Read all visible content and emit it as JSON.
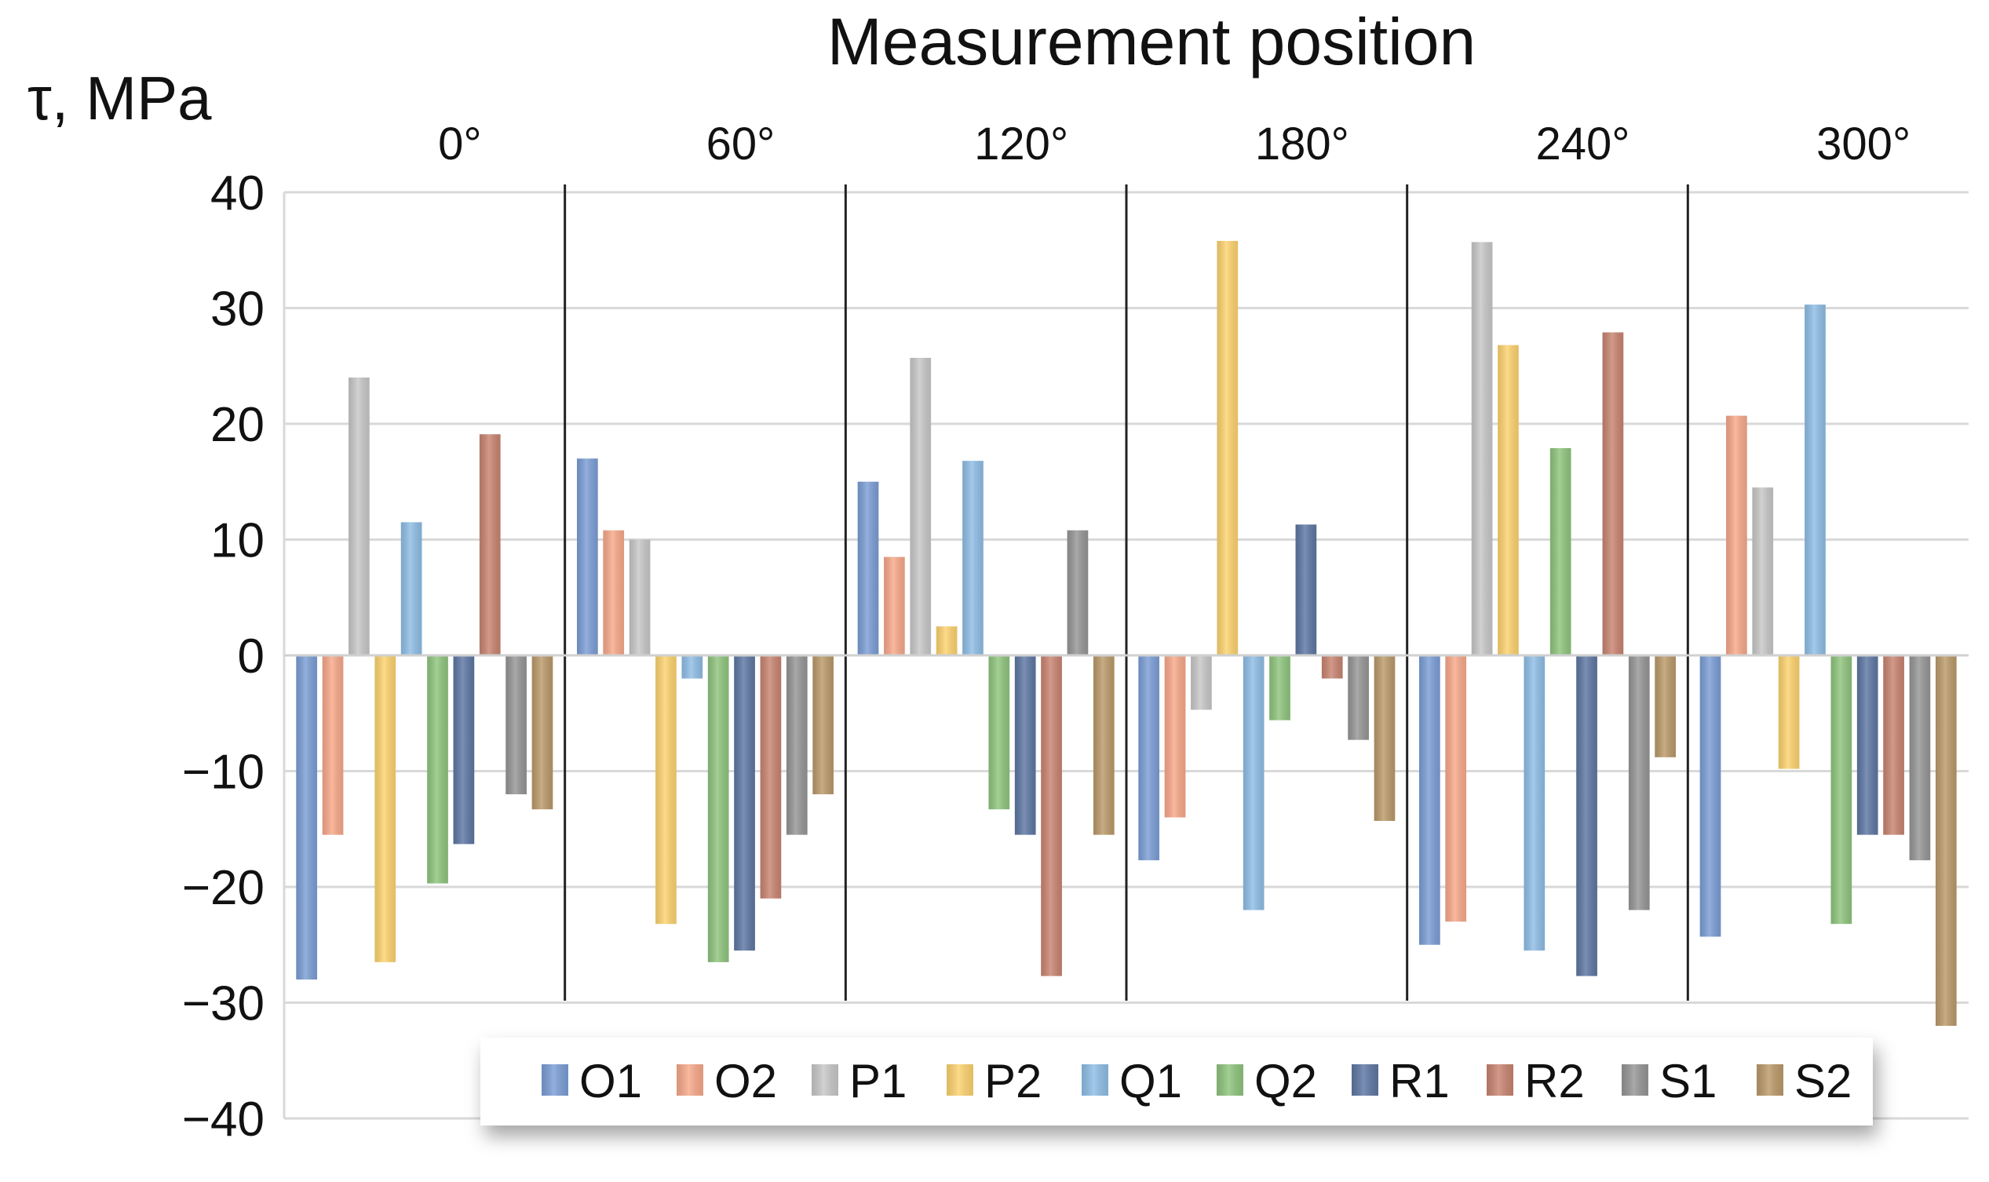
{
  "chart_data": {
    "type": "bar",
    "title": "Measurement position",
    "ylabel": "τ, MPa",
    "xlabel": "",
    "ylim": [
      -40,
      40
    ],
    "yticks": [
      40,
      30,
      20,
      10,
      0,
      -10,
      -20,
      -30,
      -40
    ],
    "ytick_labels": [
      "40",
      "30",
      "20",
      "10",
      "0",
      "−10",
      "−20",
      "−30",
      "−40"
    ],
    "categories": [
      "0°",
      "60°",
      "120°",
      "180°",
      "240°",
      "300°"
    ],
    "legend_position": "bottom",
    "grid": true,
    "series": [
      {
        "name": "O1",
        "color": "#7B9ED6",
        "values": [
          -28,
          17,
          15,
          -17.7,
          -25,
          -24.3
        ]
      },
      {
        "name": "O2",
        "color": "#F8A98A",
        "values": [
          -15.5,
          10.8,
          8.5,
          -14,
          -23,
          20.7
        ]
      },
      {
        "name": "P1",
        "color": "#C8C8C8",
        "values": [
          24,
          10,
          25.7,
          -4.7,
          35.7,
          14.5
        ]
      },
      {
        "name": "P2",
        "color": "#FDD36F",
        "values": [
          -26.5,
          -23.2,
          2.5,
          35.8,
          26.8,
          -9.8
        ]
      },
      {
        "name": "Q1",
        "color": "#8FBEE6",
        "values": [
          11.5,
          -2,
          16.8,
          -22,
          -25.5,
          30.3
        ]
      },
      {
        "name": "Q2",
        "color": "#8FC57E",
        "values": [
          -19.7,
          -26.5,
          -13.3,
          -5.6,
          17.9,
          -23.2
        ]
      },
      {
        "name": "R1",
        "color": "#5E77A3",
        "values": [
          -16.3,
          -25.5,
          -15.5,
          11.3,
          -27.7,
          -15.5
        ]
      },
      {
        "name": "R2",
        "color": "#C98471",
        "values": [
          19.1,
          -21,
          -27.7,
          -2,
          27.9,
          -15.5
        ]
      },
      {
        "name": "S1",
        "color": "#969696",
        "values": [
          -12,
          -15.5,
          10.8,
          -7.3,
          -22,
          -17.7
        ]
      },
      {
        "name": "S2",
        "color": "#BB9A6A",
        "values": [
          -13.3,
          -12,
          -15.5,
          -14.3,
          -8.8,
          -32
        ]
      }
    ]
  }
}
